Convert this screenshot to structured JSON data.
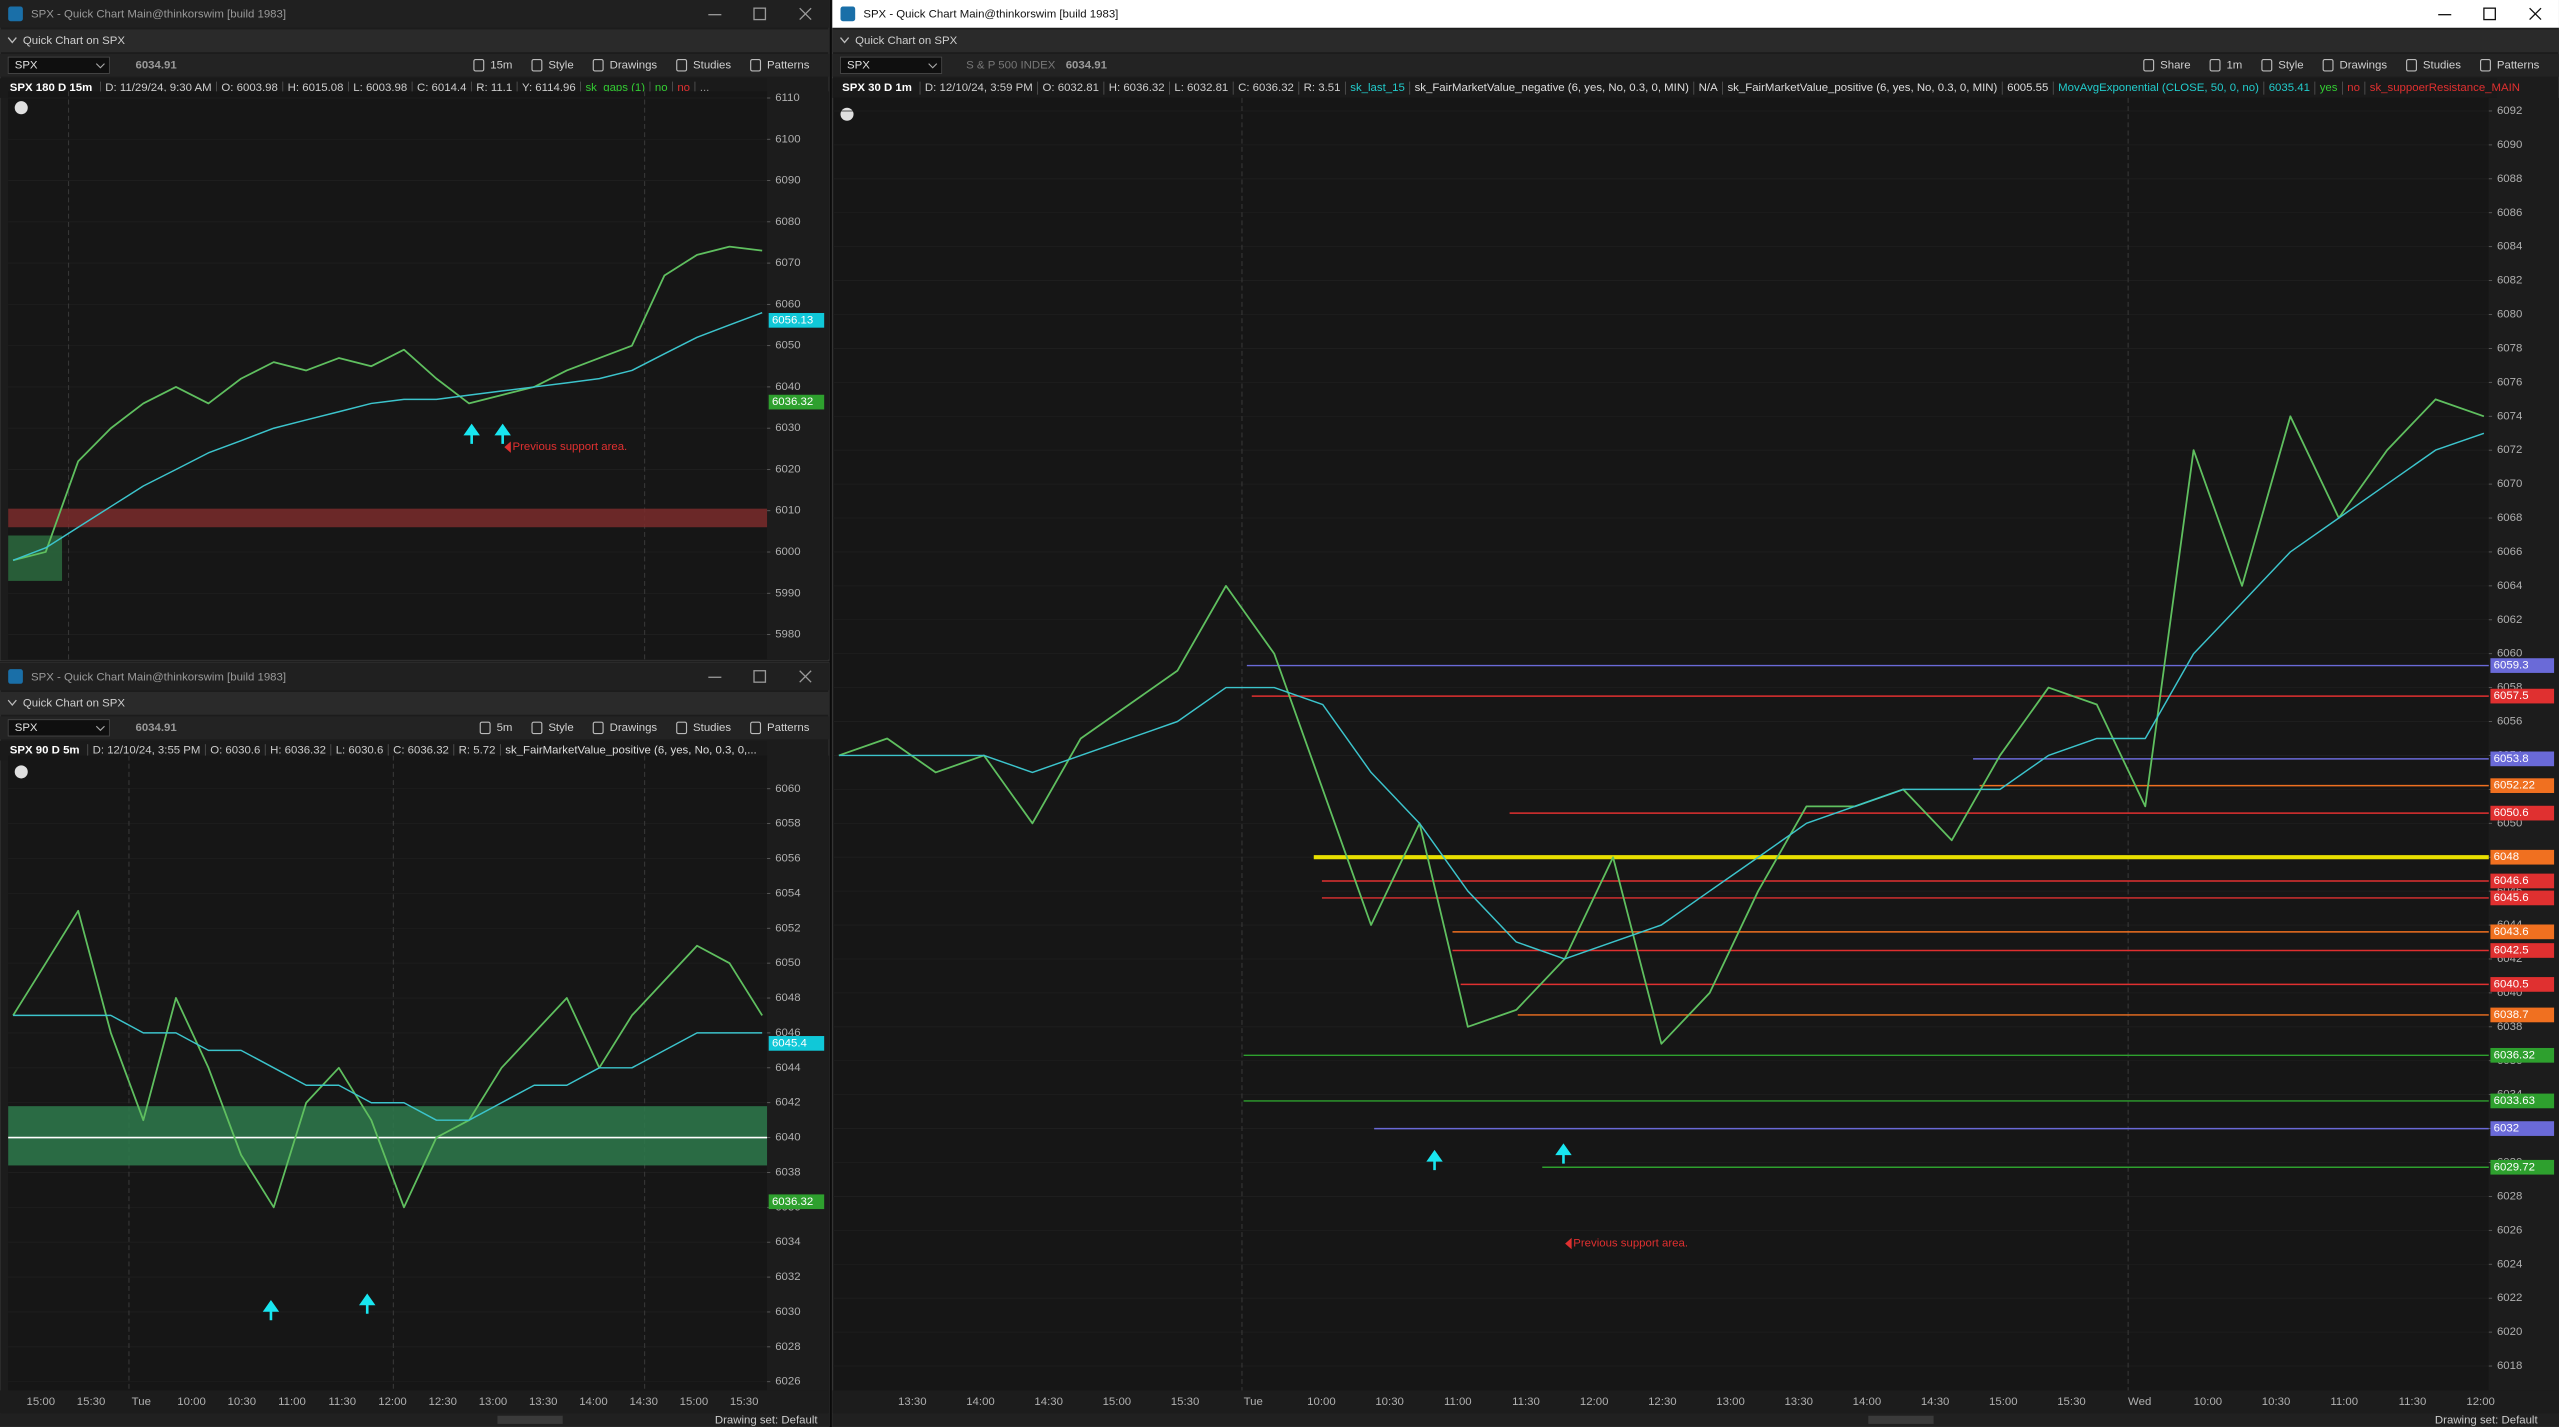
{
  "windows": [
    {
      "title": "SPX - Quick Chart Main@thinkorswim [build 1983]",
      "subtitle": "Quick Chart on SPX",
      "symbol": "SPX",
      "last": 6034.91,
      "toolbar": [
        "15m",
        "Style",
        "Drawings",
        "Studies",
        "Patterns"
      ],
      "header": "SPX 180 D 15m",
      "info": [
        "D: 11/29/24, 9:30 AM",
        "O: 6003.98",
        "H: 6015.08",
        "L: 6003.98",
        "C: 6014.4",
        "R: 11.1",
        "Y: 6114.96"
      ],
      "studies": [
        {
          "text": "sk_gaps (1)",
          "color": "#33cc33"
        },
        {
          "text": "no",
          "color": "#33cc33"
        },
        {
          "text": "no",
          "color": "#e03030"
        },
        {
          "text": "...",
          "color": "#999999"
        }
      ],
      "ylim": [
        5974,
        6111.6
      ],
      "yticks": [
        5980,
        5990,
        6000,
        6010,
        6020,
        6030,
        6040,
        6050,
        6060,
        6070,
        6080,
        6090,
        6100,
        6110
      ],
      "zones": [
        {
          "from": 6006,
          "to": 6010.5,
          "color": "#7a2c2c"
        },
        {
          "from": 5993,
          "to": 6004,
          "color": "#2c6a3e"
        }
      ],
      "close": [
        5998,
        6000,
        6022,
        6030,
        6036,
        6040,
        6036,
        6042,
        6046,
        6044,
        6047,
        6045,
        6049,
        6042,
        6036,
        6038,
        6040,
        6044,
        6047,
        6050,
        6067,
        6072,
        6074,
        6073
      ],
      "ma": [
        5998,
        6001,
        6006,
        6011,
        6016,
        6020,
        6024,
        6027,
        6030,
        6032,
        6034,
        6036,
        6037,
        6037,
        6038,
        6039,
        6040,
        6041,
        6042,
        6044,
        6048,
        6052,
        6055,
        6058
      ],
      "price_tags": [
        {
          "value": 6056.13,
          "color": "#10c8d8"
        },
        {
          "value": 6036.32,
          "color": "#2ea02e"
        }
      ],
      "annotation": "Previous support area."
    },
    {
      "title": "SPX - Quick Chart Main@thinkorswim [build 1983]",
      "subtitle": "Quick Chart on SPX",
      "symbol": "SPX",
      "last": 6034.91,
      "toolbar": [
        "5m",
        "Style",
        "Drawings",
        "Studies",
        "Patterns"
      ],
      "header": "SPX 90 D 5m",
      "info": [
        "D: 12/10/24, 3:55 PM",
        "O: 6030.6",
        "H: 6036.32",
        "L: 6030.6",
        "C: 6036.32",
        "R: 5.72"
      ],
      "studies": [
        {
          "text": "sk_FairMarketValue_positive (6, yes, No, 0.3, 0,...",
          "color": "#dddddd"
        }
      ],
      "ylim": [
        6025.5,
        6061.9
      ],
      "yticks": [
        6026,
        6028,
        6030,
        6032,
        6034,
        6036,
        6038,
        6040,
        6042,
        6044,
        6046,
        6048,
        6050,
        6052,
        6054,
        6056,
        6058,
        6060
      ],
      "zones": [
        {
          "from": 6038.4,
          "to": 6041.8,
          "color": "#2e7a4c"
        }
      ],
      "hlines": [
        {
          "value": 6040,
          "color": "#ffffff"
        }
      ],
      "close": [
        6047,
        6050,
        6053,
        6046,
        6041,
        6048,
        6044,
        6039,
        6036,
        6042,
        6044,
        6041,
        6036,
        6040,
        6041,
        6044,
        6046,
        6048,
        6044,
        6047,
        6049,
        6051,
        6050,
        6047
      ],
      "ma": [
        6047,
        6047,
        6047,
        6047,
        6046,
        6046,
        6045,
        6045,
        6044,
        6043,
        6043,
        6042,
        6042,
        6041,
        6041,
        6042,
        6043,
        6043,
        6044,
        6044,
        6045,
        6046,
        6046,
        6046
      ],
      "price_tags": [
        {
          "value": 6045.4,
          "color": "#10c8d8"
        },
        {
          "value": 6036.32,
          "color": "#2ea02e"
        }
      ],
      "time_labels": [
        "15:00",
        "15:30",
        "Tue",
        "10:00",
        "10:30",
        "11:00",
        "11:30",
        "12:00",
        "12:30",
        "13:00",
        "13:30",
        "14:00",
        "14:30",
        "15:00",
        "15:30"
      ],
      "status": "Drawing set: Default"
    },
    {
      "title": "SPX - Quick Chart Main@thinkorswim [build 1983]",
      "subtitle": "Quick Chart on SPX",
      "symbol": "SPX",
      "description": "S & P 500 INDEX",
      "last": 6034.91,
      "toolbar": [
        "Share",
        "1m",
        "Style",
        "Drawings",
        "Studies",
        "Patterns"
      ],
      "header": "SPX 30 D 1m",
      "info": [
        "D: 12/10/24, 3:59 PM",
        "O: 6032.81",
        "H: 6036.32",
        "L: 6032.81",
        "C: 6036.32",
        "R: 3.51"
      ],
      "studies": [
        {
          "text": "sk_last_15",
          "color": "#22cccc"
        },
        {
          "text": "sk_FairMarketValue_negative (6, yes, No, 0.3, 0, MIN)",
          "color": "#dddddd"
        },
        {
          "text": "N/A",
          "color": "#dddddd"
        },
        {
          "text": "sk_FairMarketValue_positive (6, yes, No, 0.3, 0, MIN)",
          "color": "#dddddd"
        },
        {
          "text": "6005.55",
          "color": "#dddddd"
        },
        {
          "text": "MovAvgExponential (CLOSE, 50, 0, no)",
          "color": "#22cccc"
        },
        {
          "text": "6035.41",
          "color": "#22cccc"
        },
        {
          "text": "yes",
          "color": "#33cc33"
        },
        {
          "text": "no",
          "color": "#e03030"
        },
        {
          "text": "sk_suppoerResistance_MAIN",
          "color": "#e03030"
        }
      ],
      "ylim": [
        6016.56,
        6092.77
      ],
      "yticks": [
        6018,
        6020,
        6022,
        6024,
        6026,
        6028,
        6030,
        6032,
        6034,
        6036,
        6038,
        6040,
        6042,
        6044,
        6046,
        6048,
        6050,
        6052,
        6054,
        6056,
        6058,
        6060,
        6062,
        6064,
        6066,
        6068,
        6070,
        6072,
        6074,
        6076,
        6078,
        6080,
        6082,
        6084,
        6086,
        6088,
        6090,
        6092
      ],
      "close": [
        6054,
        6055,
        6053,
        6054,
        6050,
        6055,
        6057,
        6059,
        6064,
        6060,
        6052,
        6044,
        6050,
        6038,
        6039,
        6042,
        6048,
        6037,
        6040,
        6046,
        6051,
        6051,
        6052,
        6049,
        6054,
        6058,
        6057,
        6051,
        6072,
        6064,
        6074,
        6068,
        6072,
        6075,
        6074
      ],
      "ma": [
        6054,
        6054,
        6054,
        6054,
        6053,
        6054,
        6055,
        6056,
        6058,
        6058,
        6057,
        6053,
        6050,
        6046,
        6043,
        6042,
        6043,
        6044,
        6046,
        6048,
        6050,
        6051,
        6052,
        6052,
        6052,
        6054,
        6055,
        6055,
        6060,
        6063,
        6066,
        6068,
        6070,
        6072,
        6073
      ],
      "level_lines": true,
      "price_tags": [
        {
          "value": 6059.3,
          "color": "#6a6ad8"
        },
        {
          "value": 6057.5,
          "color": "#e03030"
        },
        {
          "value": 6053.8,
          "color": "#6a6ad8"
        },
        {
          "value": 6052.22,
          "color": "#f07020"
        },
        {
          "value": 6050.6,
          "color": "#e03030"
        },
        {
          "value": 6048,
          "color": "#f07020",
          "line_color": "#e8e000"
        },
        {
          "value": 6046.6,
          "color": "#e03030"
        },
        {
          "value": 6045.6,
          "color": "#e03030"
        },
        {
          "value": 6043.6,
          "color": "#f07020"
        },
        {
          "value": 6042.5,
          "color": "#e03030"
        },
        {
          "value": 6040.5,
          "color": "#e03030"
        },
        {
          "value": 6038.7,
          "color": "#f07020"
        },
        {
          "value": 6036.32,
          "color": "#2ea02e"
        },
        {
          "value": 6033.63,
          "color": "#2ea02e"
        },
        {
          "value": 6032,
          "color": "#6a6ad8"
        },
        {
          "value": 6029.72,
          "color": "#2ea02e"
        }
      ],
      "annotation": "Previous support area.",
      "time_labels": [
        "13:30",
        "14:00",
        "14:30",
        "15:00",
        "15:30",
        "Tue",
        "10:00",
        "10:30",
        "11:00",
        "11:30",
        "12:00",
        "12:30",
        "13:00",
        "13:30",
        "14:00",
        "14:30",
        "15:00",
        "15:30",
        "Wed",
        "10:00",
        "10:30",
        "11:00",
        "11:30",
        "12:00"
      ],
      "status": "Drawing set: Default"
    }
  ]
}
